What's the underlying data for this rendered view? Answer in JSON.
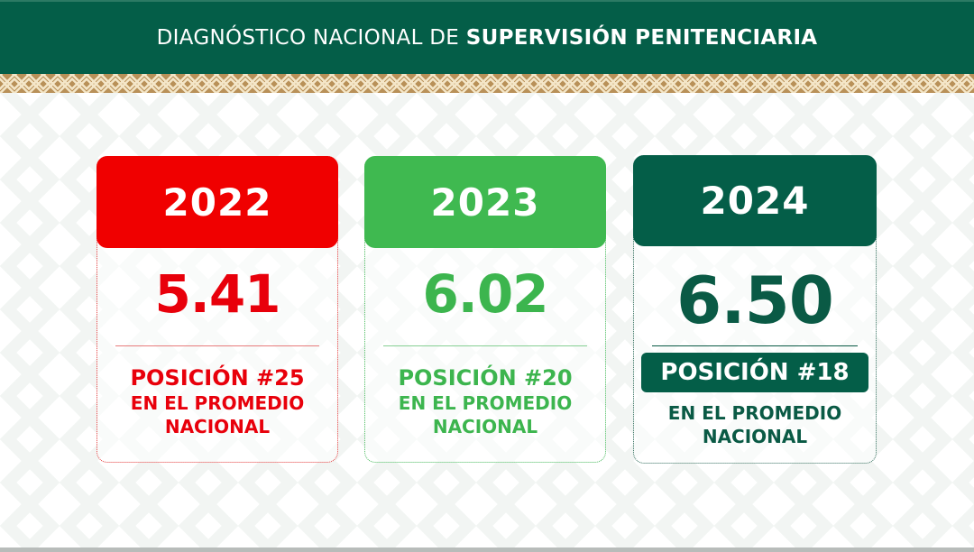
{
  "header": {
    "title_light": "DIAGNÓSTICO NACIONAL DE ",
    "title_bold": "SUPERVISIÓN PENITENCIARIA"
  },
  "colors": {
    "header_green": "#045e48",
    "border_gold": "#b99159",
    "red_2022": "#f00000",
    "green_2023": "#3fb950",
    "dark_green_2024": "#045e48"
  },
  "cards": [
    {
      "year": "2022",
      "score": "5.41",
      "position": "POSICIÓN #25",
      "subtext_line1": "EN EL PROMEDIO",
      "subtext_line2": "NACIONAL"
    },
    {
      "year": "2023",
      "score": "6.02",
      "position": "POSICIÓN #20",
      "subtext_line1": "EN EL PROMEDIO",
      "subtext_line2": "NACIONAL"
    },
    {
      "year": "2024",
      "score": "6.50",
      "position": "POSICIÓN #18",
      "subtext_line1": "EN EL PROMEDIO",
      "subtext_line2": "NACIONAL"
    }
  ]
}
